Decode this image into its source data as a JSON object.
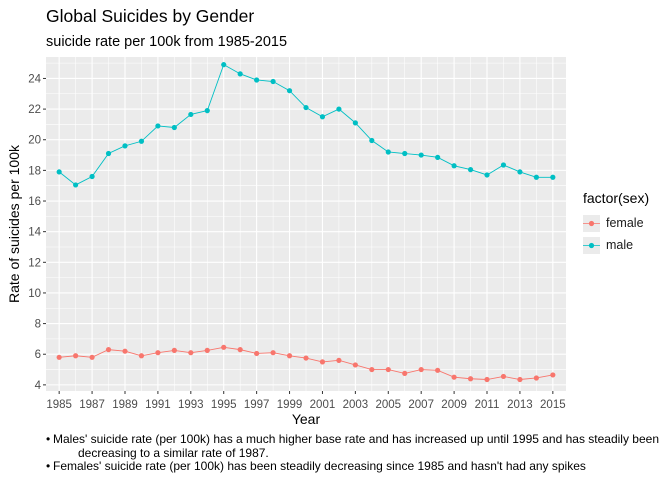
{
  "chart_data": {
    "type": "line",
    "title": "Global Suicides by Gender",
    "subtitle": "suicide rate per 100k from 1985-2015",
    "xlabel": "Year",
    "ylabel": "Rate of suicides per 100k",
    "legend_title": "factor(sex)",
    "legend_position": "right",
    "grid": true,
    "x": [
      1985,
      1986,
      1987,
      1988,
      1989,
      1990,
      1991,
      1992,
      1993,
      1994,
      1995,
      1996,
      1997,
      1998,
      1999,
      2000,
      2001,
      2002,
      2003,
      2004,
      2005,
      2006,
      2007,
      2008,
      2009,
      2010,
      2011,
      2012,
      2013,
      2014,
      2015
    ],
    "xticks": [
      "1985",
      "1987",
      "1989",
      "1991",
      "1993",
      "1995",
      "1997",
      "1999",
      "2001",
      "2003",
      "2005",
      "2007",
      "2009",
      "2011",
      "2013",
      "2015"
    ],
    "xlim": [
      1984.2,
      2015.8
    ],
    "yticks": [
      "4",
      "6",
      "8",
      "10",
      "12",
      "14",
      "16",
      "18",
      "20",
      "22",
      "24"
    ],
    "ylim": [
      3.6,
      25.4
    ],
    "series": [
      {
        "name": "female",
        "color": "#F8766D",
        "values": [
          5.8,
          5.9,
          5.8,
          6.3,
          6.2,
          5.9,
          6.1,
          6.25,
          6.1,
          6.25,
          6.45,
          6.3,
          6.05,
          6.1,
          5.9,
          5.75,
          5.5,
          5.6,
          5.3,
          5.0,
          5.0,
          4.75,
          5.0,
          4.95,
          4.5,
          4.4,
          4.35,
          4.55,
          4.35,
          4.45,
          4.65
        ]
      },
      {
        "name": "male",
        "color": "#00BFC4",
        "values": [
          17.9,
          17.05,
          17.6,
          19.1,
          19.6,
          19.9,
          20.9,
          20.8,
          21.65,
          21.9,
          24.9,
          24.3,
          23.9,
          23.8,
          23.2,
          22.1,
          21.5,
          22.0,
          21.1,
          19.95,
          19.2,
          19.1,
          19.0,
          18.85,
          18.3,
          18.05,
          17.7,
          18.35,
          17.9,
          17.55,
          17.55
        ]
      }
    ]
  },
  "notes": [
    {
      "bullet": "•",
      "text": "Males' suicide rate (per 100k) has a much higher base rate and has increased up until 1995 and has steadily been decreasing to a similar rate of 1987."
    },
    {
      "bullet": "•",
      "text": "Females' suicide rate (per 100k) has been steadily decreasing since 1985 and hasn't had any spikes"
    }
  ]
}
